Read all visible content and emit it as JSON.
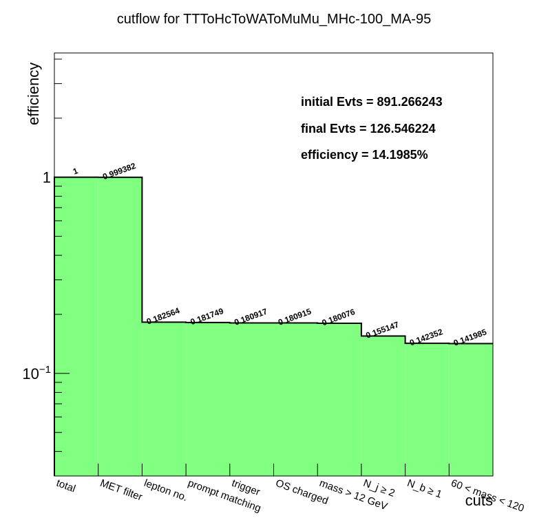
{
  "chart_data": {
    "type": "bar",
    "title": "cutflow for TTToHcToWAToMuMu_MHc-100_MA-95",
    "xlabel": "cuts",
    "ylabel": "efficiency",
    "yscale": "log",
    "ylim": [
      0.03,
      4.3
    ],
    "grid": false,
    "legend": "none",
    "fill_color": "#80ff80",
    "line_color": "#000000",
    "categories": [
      "total",
      "MET filter",
      "lepton no.",
      "prompt matching",
      "trigger",
      "OS charged",
      "mass > 12 GeV",
      "N_j ≥ 2",
      "N_b ≥ 1",
      "60 < mass < 120"
    ],
    "bins": [
      {
        "label": "total",
        "value": 1,
        "value_label": "1"
      },
      {
        "label": "MET filter",
        "value": 0.999382,
        "value_label": "0.999382"
      },
      {
        "label": "lepton no.",
        "value": 0.182564,
        "value_label": "0.182564"
      },
      {
        "label": "prompt matching",
        "value": 0.181749,
        "value_label": "0.181749"
      },
      {
        "label": "trigger",
        "value": 0.180917,
        "value_label": "0.180917"
      },
      {
        "label": "OS charged",
        "value": 0.180915,
        "value_label": "0.180915"
      },
      {
        "label": "mass > 12 GeV",
        "value": 0.180076,
        "value_label": "0.180076"
      },
      {
        "label": "N_j ≥ 2",
        "value": 0.155147,
        "value_label": "0.155147"
      },
      {
        "label": "N_b ≥ 1",
        "value": 0.142352,
        "value_label": "0.142352"
      },
      {
        "label": "60 < mass < 120",
        "value": 0.141985,
        "value_label": "0.141985"
      }
    ],
    "y_tick_labels": [
      {
        "value": 1,
        "text": "1"
      },
      {
        "value": 0.1,
        "base": "10",
        "exp": "−1"
      }
    ],
    "annotations": [
      "initial Evts = 891.266243",
      "final Evts = 126.546224",
      "efficiency = 14.1985%"
    ]
  }
}
